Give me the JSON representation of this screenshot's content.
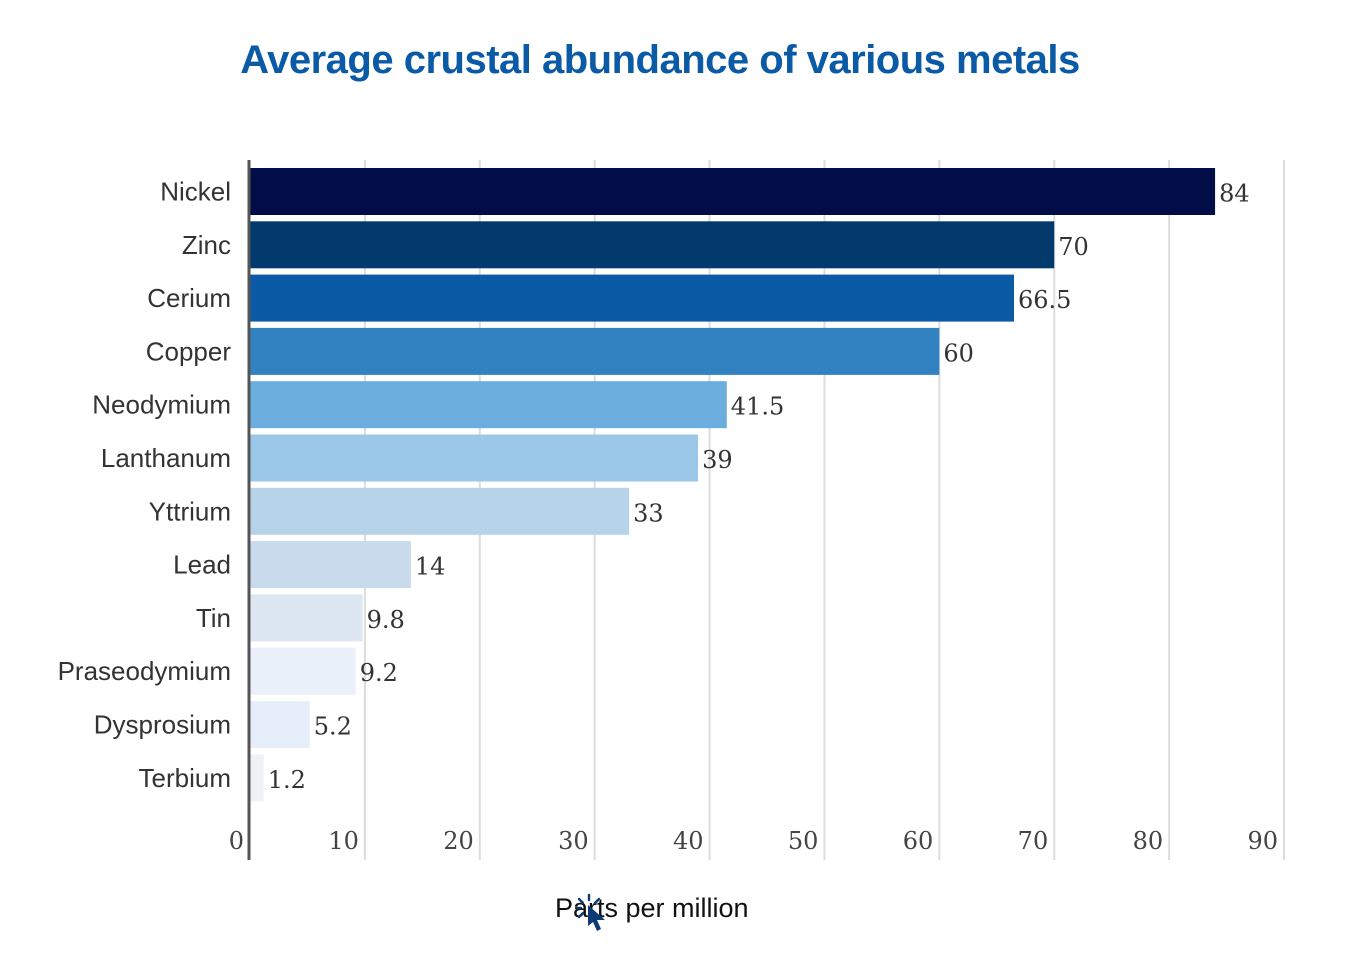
{
  "chart_data": {
    "type": "bar",
    "orientation": "horizontal",
    "title": "Average crustal abundance of various metals",
    "xlabel": "Parts per million",
    "ylabel": "",
    "xlim": [
      0,
      90
    ],
    "xticks": [
      0,
      10,
      20,
      30,
      40,
      50,
      60,
      70,
      80,
      90
    ],
    "grid": "vertical",
    "categories": [
      "Nickel",
      "Zinc",
      "Cerium",
      "Copper",
      "Neodymium",
      "Lanthanum",
      "Yttrium",
      "Lead",
      "Tin",
      "Praseodymium",
      "Dysprosium",
      "Terbium"
    ],
    "values": [
      84,
      70,
      66.5,
      60,
      41.5,
      39,
      33,
      14,
      9.8,
      9.2,
      5.2,
      1.2
    ],
    "data_labels": [
      "84",
      "70",
      "66.5",
      "60",
      "41.5",
      "39",
      "33",
      "14",
      "9.8",
      "9.2",
      "5.2",
      "1.2"
    ],
    "colors": [
      "#020d48",
      "#033a6e",
      "#0a5aa5",
      "#3282c2",
      "#6baedd",
      "#9bc7e8",
      "#b6d3ea",
      "#c8dbec",
      "#dde7f1",
      "#e9f0f9",
      "#e6eff9",
      "#eef1f6"
    ],
    "title_color": "#0a5aa5"
  },
  "cursor_icon": "pointer-click-icon"
}
